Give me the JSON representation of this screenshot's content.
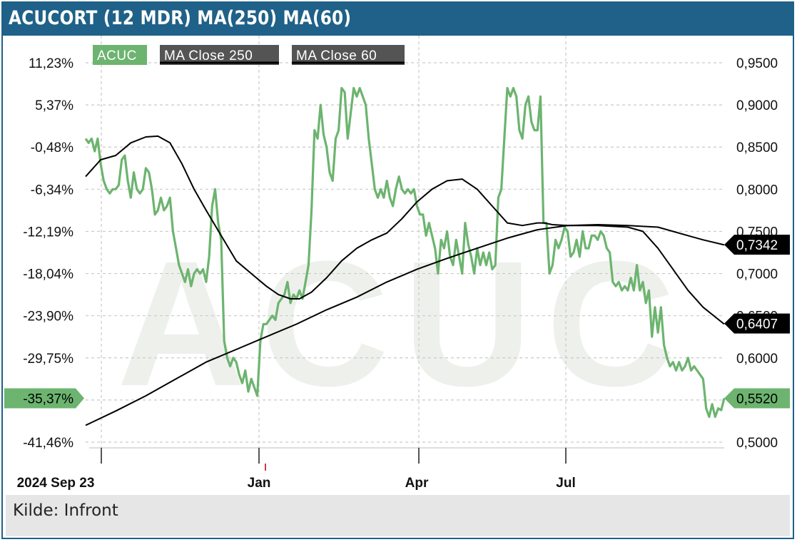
{
  "header": {
    "title": "ACUCORT (12 MDR) MA(250) MA(60)"
  },
  "footer": {
    "source": "Kilde: Infront"
  },
  "colors": {
    "header": "#1f6188",
    "price": "#6cb46f",
    "ma": "#000000",
    "legend_dark": "#545454",
    "watermark": "#eef0ec"
  },
  "chart_data": {
    "type": "line",
    "watermark": "ACUC",
    "x_labels": [
      "2024 Sep 23",
      "Jan",
      "Apr",
      "Jul"
    ],
    "y_left_ticks": [
      "11,23%",
      "5,37%",
      "-0,48%",
      "-6,34%",
      "-12,19%",
      "-18,04%",
      "-23,90%",
      "-29,75%",
      "-35,37%",
      "-41,46%"
    ],
    "y_right_ticks": [
      "0,9500",
      "0,9000",
      "0,8500",
      "0,8000",
      "0,7500",
      "0,7000",
      "0,6500",
      "0,6000",
      "0,5500",
      "0,5000"
    ],
    "y_right_range": [
      0.5,
      0.95
    ],
    "grid": true,
    "legend": {
      "position": "top-left",
      "items": [
        "ACUC",
        "MA Close 250",
        "MA Close 60"
      ]
    },
    "last_values": {
      "price": "0,5520",
      "price_pct": "-35,37%",
      "ma250": "0,7342",
      "ma60": "0,6407"
    },
    "series": [
      {
        "name": "ACUC",
        "color": "#6cb46f",
        "points": [
          [
            0,
            0.86
          ],
          [
            2,
            0.855
          ],
          [
            4,
            0.86
          ],
          [
            6,
            0.845
          ],
          [
            8,
            0.86
          ],
          [
            10,
            0.83
          ],
          [
            12,
            0.81
          ],
          [
            14,
            0.8
          ],
          [
            16,
            0.795
          ],
          [
            18,
            0.8
          ],
          [
            20,
            0.8
          ],
          [
            22,
            0.805
          ],
          [
            24,
            0.835
          ],
          [
            26,
            0.84
          ],
          [
            28,
            0.81
          ],
          [
            30,
            0.79
          ],
          [
            32,
            0.82
          ],
          [
            34,
            0.8
          ],
          [
            36,
            0.795
          ],
          [
            38,
            0.8
          ],
          [
            40,
            0.825
          ],
          [
            42,
            0.82
          ],
          [
            44,
            0.8
          ],
          [
            46,
            0.77
          ],
          [
            48,
            0.775
          ],
          [
            50,
            0.79
          ],
          [
            52,
            0.775
          ],
          [
            54,
            0.78
          ],
          [
            56,
            0.79
          ],
          [
            58,
            0.75
          ],
          [
            60,
            0.73
          ],
          [
            62,
            0.71
          ],
          [
            64,
            0.7
          ],
          [
            66,
            0.69
          ],
          [
            68,
            0.705
          ],
          [
            70,
            0.685
          ],
          [
            72,
            0.7
          ],
          [
            74,
            0.705
          ],
          [
            76,
            0.7
          ],
          [
            78,
            0.705
          ],
          [
            80,
            0.69
          ],
          [
            82,
            0.72
          ],
          [
            84,
            0.78
          ],
          [
            86,
            0.8
          ],
          [
            88,
            0.76
          ],
          [
            90,
            0.74
          ],
          [
            92,
            0.62
          ],
          [
            94,
            0.6
          ],
          [
            96,
            0.59
          ],
          [
            98,
            0.6
          ],
          [
            100,
            0.595
          ],
          [
            102,
            0.58
          ],
          [
            104,
            0.57
          ],
          [
            106,
            0.585
          ],
          [
            108,
            0.56
          ],
          [
            110,
            0.575
          ],
          [
            112,
            0.565
          ],
          [
            114,
            0.555
          ],
          [
            116,
            0.62
          ],
          [
            118,
            0.64
          ],
          [
            120,
            0.64
          ],
          [
            122,
            0.645
          ],
          [
            124,
            0.65
          ],
          [
            126,
            0.645
          ],
          [
            128,
            0.665
          ],
          [
            130,
            0.67
          ],
          [
            132,
            0.675
          ],
          [
            134,
            0.69
          ],
          [
            136,
            0.665
          ],
          [
            138,
            0.675
          ],
          [
            140,
            0.67
          ],
          [
            142,
            0.68
          ],
          [
            144,
            0.67
          ],
          [
            146,
            0.69
          ],
          [
            148,
            0.71
          ],
          [
            150,
            0.775
          ],
          [
            152,
            0.87
          ],
          [
            154,
            0.86
          ],
          [
            156,
            0.9
          ],
          [
            158,
            0.865
          ],
          [
            160,
            0.85
          ],
          [
            162,
            0.82
          ],
          [
            164,
            0.81
          ],
          [
            166,
            0.86
          ],
          [
            168,
            0.87
          ],
          [
            170,
            0.92
          ],
          [
            172,
            0.915
          ],
          [
            174,
            0.86
          ],
          [
            176,
            0.89
          ],
          [
            178,
            0.92
          ],
          [
            180,
            0.91
          ],
          [
            182,
            0.92
          ],
          [
            184,
            0.91
          ],
          [
            186,
            0.9
          ],
          [
            188,
            0.86
          ],
          [
            190,
            0.83
          ],
          [
            192,
            0.8
          ],
          [
            194,
            0.79
          ],
          [
            196,
            0.8
          ],
          [
            198,
            0.79
          ],
          [
            200,
            0.81
          ],
          [
            202,
            0.79
          ],
          [
            204,
            0.78
          ],
          [
            206,
            0.8
          ],
          [
            208,
            0.815
          ],
          [
            210,
            0.8
          ],
          [
            212,
            0.795
          ],
          [
            214,
            0.8
          ],
          [
            216,
            0.795
          ],
          [
            218,
            0.8
          ],
          [
            220,
            0.78
          ],
          [
            222,
            0.77
          ],
          [
            224,
            0.77
          ],
          [
            226,
            0.745
          ],
          [
            228,
            0.76
          ],
          [
            230,
            0.745
          ],
          [
            232,
            0.73
          ],
          [
            234,
            0.7
          ],
          [
            236,
            0.74
          ],
          [
            238,
            0.73
          ],
          [
            240,
            0.75
          ],
          [
            242,
            0.72
          ],
          [
            244,
            0.71
          ],
          [
            246,
            0.74
          ],
          [
            248,
            0.72
          ],
          [
            250,
            0.7
          ],
          [
            252,
            0.76
          ],
          [
            254,
            0.735
          ],
          [
            256,
            0.72
          ],
          [
            258,
            0.7
          ],
          [
            260,
            0.73
          ],
          [
            262,
            0.71
          ],
          [
            264,
            0.725
          ],
          [
            266,
            0.71
          ],
          [
            268,
            0.725
          ],
          [
            270,
            0.705
          ],
          [
            272,
            0.71
          ],
          [
            274,
            0.79
          ],
          [
            276,
            0.8
          ],
          [
            278,
            0.86
          ],
          [
            280,
            0.92
          ],
          [
            282,
            0.91
          ],
          [
            284,
            0.92
          ],
          [
            286,
            0.91
          ],
          [
            288,
            0.87
          ],
          [
            290,
            0.86
          ],
          [
            292,
            0.9
          ],
          [
            294,
            0.91
          ],
          [
            296,
            0.88
          ],
          [
            298,
            0.87
          ],
          [
            300,
            0.87
          ],
          [
            302,
            0.91
          ],
          [
            304,
            0.76
          ],
          [
            306,
            0.76
          ],
          [
            308,
            0.7
          ],
          [
            310,
            0.71
          ],
          [
            312,
            0.74
          ],
          [
            314,
            0.73
          ],
          [
            316,
            0.74
          ],
          [
            318,
            0.755
          ],
          [
            320,
            0.75
          ],
          [
            322,
            0.72
          ],
          [
            324,
            0.725
          ],
          [
            326,
            0.74
          ],
          [
            328,
            0.72
          ],
          [
            330,
            0.75
          ],
          [
            332,
            0.73
          ],
          [
            334,
            0.73
          ],
          [
            336,
            0.745
          ],
          [
            338,
            0.745
          ],
          [
            340,
            0.74
          ],
          [
            342,
            0.75
          ],
          [
            344,
            0.745
          ],
          [
            346,
            0.73
          ],
          [
            348,
            0.725
          ],
          [
            350,
            0.69
          ],
          [
            352,
            0.685
          ],
          [
            354,
            0.69
          ],
          [
            356,
            0.68
          ],
          [
            358,
            0.685
          ],
          [
            360,
            0.68
          ],
          [
            362,
            0.695
          ],
          [
            364,
            0.68
          ],
          [
            366,
            0.71
          ],
          [
            368,
            0.68
          ],
          [
            370,
            0.69
          ],
          [
            372,
            0.665
          ],
          [
            374,
            0.68
          ],
          [
            376,
            0.625
          ],
          [
            378,
            0.66
          ],
          [
            380,
            0.63
          ],
          [
            382,
            0.66
          ],
          [
            384,
            0.615
          ],
          [
            386,
            0.6
          ],
          [
            388,
            0.59
          ],
          [
            390,
            0.595
          ],
          [
            392,
            0.585
          ],
          [
            394,
            0.595
          ],
          [
            396,
            0.585
          ],
          [
            398,
            0.59
          ],
          [
            400,
            0.6
          ],
          [
            402,
            0.585
          ],
          [
            404,
            0.59
          ],
          [
            406,
            0.585
          ],
          [
            408,
            0.58
          ],
          [
            410,
            0.575
          ],
          [
            412,
            0.54
          ],
          [
            414,
            0.53
          ],
          [
            416,
            0.545
          ],
          [
            418,
            0.53
          ],
          [
            420,
            0.54
          ],
          [
            422,
            0.538
          ],
          [
            424,
            0.552
          ]
        ]
      },
      {
        "name": "MA Close 250",
        "color": "#000000",
        "points": [
          [
            0,
            0.52
          ],
          [
            20,
            0.537
          ],
          [
            40,
            0.555
          ],
          [
            60,
            0.575
          ],
          [
            80,
            0.595
          ],
          [
            100,
            0.61
          ],
          [
            120,
            0.625
          ],
          [
            140,
            0.64
          ],
          [
            160,
            0.657
          ],
          [
            180,
            0.672
          ],
          [
            200,
            0.69
          ],
          [
            220,
            0.705
          ],
          [
            240,
            0.718
          ],
          [
            260,
            0.73
          ],
          [
            280,
            0.742
          ],
          [
            300,
            0.752
          ],
          [
            320,
            0.757
          ],
          [
            340,
            0.758
          ],
          [
            360,
            0.757
          ],
          [
            380,
            0.755
          ],
          [
            400,
            0.745
          ],
          [
            410,
            0.74
          ],
          [
            424,
            0.734
          ]
        ]
      },
      {
        "name": "MA Close 60",
        "color": "#000000",
        "points": [
          [
            0,
            0.815
          ],
          [
            10,
            0.835
          ],
          [
            20,
            0.84
          ],
          [
            30,
            0.855
          ],
          [
            40,
            0.862
          ],
          [
            48,
            0.863
          ],
          [
            56,
            0.855
          ],
          [
            64,
            0.83
          ],
          [
            72,
            0.8
          ],
          [
            80,
            0.775
          ],
          [
            90,
            0.745
          ],
          [
            100,
            0.715
          ],
          [
            110,
            0.7
          ],
          [
            120,
            0.685
          ],
          [
            128,
            0.675
          ],
          [
            136,
            0.67
          ],
          [
            142,
            0.67
          ],
          [
            150,
            0.678
          ],
          [
            160,
            0.695
          ],
          [
            170,
            0.715
          ],
          [
            180,
            0.73
          ],
          [
            190,
            0.74
          ],
          [
            200,
            0.748
          ],
          [
            210,
            0.765
          ],
          [
            220,
            0.785
          ],
          [
            230,
            0.8
          ],
          [
            240,
            0.81
          ],
          [
            250,
            0.812
          ],
          [
            260,
            0.8
          ],
          [
            270,
            0.78
          ],
          [
            280,
            0.76
          ],
          [
            290,
            0.757
          ],
          [
            300,
            0.76
          ],
          [
            304,
            0.76
          ],
          [
            310,
            0.758
          ],
          [
            320,
            0.757
          ],
          [
            340,
            0.757
          ],
          [
            360,
            0.755
          ],
          [
            370,
            0.75
          ],
          [
            380,
            0.73
          ],
          [
            390,
            0.705
          ],
          [
            400,
            0.68
          ],
          [
            410,
            0.66
          ],
          [
            424,
            0.64
          ]
        ]
      }
    ]
  }
}
